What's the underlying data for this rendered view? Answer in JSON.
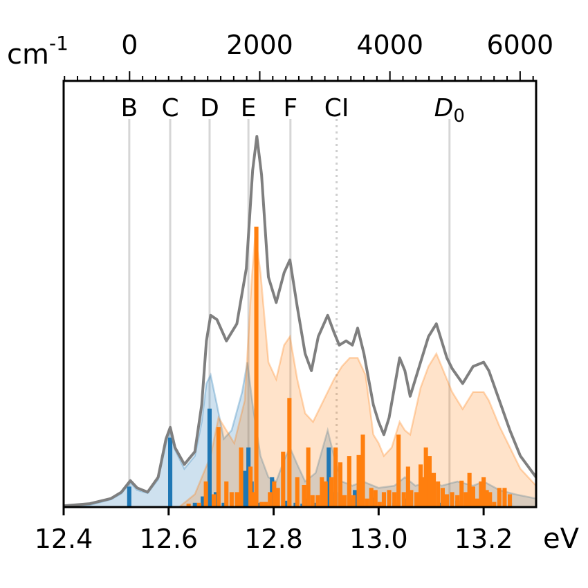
{
  "chart_data": {
    "type": "bar",
    "xlabel_bottom": "eV",
    "xlabel_top": "cm",
    "xlabel_top_exp": "-1",
    "xlim": [
      12.4,
      13.3
    ],
    "ylim": [
      0,
      1.0
    ],
    "x_ticks_bottom": [
      {
        "value": 12.4,
        "label": "12.4"
      },
      {
        "value": 12.6,
        "label": "12.6"
      },
      {
        "value": 12.8,
        "label": "12.8"
      },
      {
        "value": 13.0,
        "label": "13.0"
      },
      {
        "value": 13.2,
        "label": "13.2"
      }
    ],
    "top_axis_ref_ev": 12.5256,
    "top_axis_ev_per_cm": 0.000123984,
    "x_ticks_top": [
      {
        "value": 0,
        "label": "0"
      },
      {
        "value": 2000,
        "label": "2000"
      },
      {
        "value": 4000,
        "label": "4000"
      },
      {
        "value": 6000,
        "label": "6000"
      }
    ],
    "peak_markers": [
      {
        "label": "B",
        "x": 12.525,
        "style": "solid"
      },
      {
        "label": "C",
        "x": 12.603,
        "style": "solid"
      },
      {
        "label": "D",
        "x": 12.678,
        "style": "solid"
      },
      {
        "label": "E",
        "x": 12.752,
        "style": "solid"
      },
      {
        "label": "F",
        "x": 12.832,
        "style": "solid"
      },
      {
        "label": "CI",
        "x": 12.92,
        "style": "dotted"
      },
      {
        "label": "D",
        "sub": "0",
        "x": 13.135,
        "style": "solid",
        "italic": true
      }
    ],
    "series": [
      {
        "name": "",
        "kind": "envelope",
        "color": "#7f7f7f",
        "points": [
          [
            12.4,
            0.003
          ],
          [
            12.45,
            0.008
          ],
          [
            12.49,
            0.02
          ],
          [
            12.51,
            0.035
          ],
          [
            12.527,
            0.062
          ],
          [
            12.54,
            0.045
          ],
          [
            12.56,
            0.035
          ],
          [
            12.58,
            0.07
          ],
          [
            12.595,
            0.16
          ],
          [
            12.603,
            0.187
          ],
          [
            12.612,
            0.14
          ],
          [
            12.63,
            0.1
          ],
          [
            12.65,
            0.13
          ],
          [
            12.663,
            0.24
          ],
          [
            12.672,
            0.39
          ],
          [
            12.68,
            0.45
          ],
          [
            12.692,
            0.44
          ],
          [
            12.71,
            0.39
          ],
          [
            12.73,
            0.43
          ],
          [
            12.748,
            0.56
          ],
          [
            12.76,
            0.79
          ],
          [
            12.768,
            0.87
          ],
          [
            12.777,
            0.78
          ],
          [
            12.79,
            0.54
          ],
          [
            12.805,
            0.48
          ],
          [
            12.82,
            0.55
          ],
          [
            12.831,
            0.58
          ],
          [
            12.845,
            0.47
          ],
          [
            12.86,
            0.36
          ],
          [
            12.872,
            0.32
          ],
          [
            12.885,
            0.4
          ],
          [
            12.903,
            0.45
          ],
          [
            12.915,
            0.41
          ],
          [
            12.925,
            0.38
          ],
          [
            12.938,
            0.39
          ],
          [
            12.95,
            0.38
          ],
          [
            12.96,
            0.42
          ],
          [
            12.972,
            0.36
          ],
          [
            12.99,
            0.24
          ],
          [
            13.0,
            0.2
          ],
          [
            13.01,
            0.17
          ],
          [
            13.02,
            0.21
          ],
          [
            13.04,
            0.35
          ],
          [
            13.05,
            0.32
          ],
          [
            13.06,
            0.26
          ],
          [
            13.08,
            0.34
          ],
          [
            13.095,
            0.4
          ],
          [
            13.11,
            0.43
          ],
          [
            13.13,
            0.35
          ],
          [
            13.14,
            0.325
          ],
          [
            13.16,
            0.29
          ],
          [
            13.18,
            0.33
          ],
          [
            13.2,
            0.34
          ],
          [
            13.21,
            0.32
          ],
          [
            13.23,
            0.25
          ],
          [
            13.25,
            0.18
          ],
          [
            13.27,
            0.12
          ],
          [
            13.3,
            0.07
          ]
        ]
      },
      {
        "name": "",
        "kind": "filled-area",
        "color": "#1f77b4",
        "points": [
          [
            12.4,
            0.001
          ],
          [
            12.45,
            0.005
          ],
          [
            12.49,
            0.018
          ],
          [
            12.51,
            0.032
          ],
          [
            12.527,
            0.058
          ],
          [
            12.54,
            0.04
          ],
          [
            12.56,
            0.033
          ],
          [
            12.58,
            0.065
          ],
          [
            12.595,
            0.15
          ],
          [
            12.603,
            0.18
          ],
          [
            12.612,
            0.135
          ],
          [
            12.63,
            0.09
          ],
          [
            12.65,
            0.12
          ],
          [
            12.663,
            0.2
          ],
          [
            12.672,
            0.29
          ],
          [
            12.68,
            0.31
          ],
          [
            12.692,
            0.24
          ],
          [
            12.705,
            0.16
          ],
          [
            12.72,
            0.18
          ],
          [
            12.74,
            0.27
          ],
          [
            12.75,
            0.34
          ],
          [
            12.76,
            0.24
          ],
          [
            12.775,
            0.12
          ],
          [
            12.79,
            0.07
          ],
          [
            12.805,
            0.06
          ],
          [
            12.82,
            0.11
          ],
          [
            12.831,
            0.14
          ],
          [
            12.845,
            0.1
          ],
          [
            12.86,
            0.06
          ],
          [
            12.88,
            0.08
          ],
          [
            12.903,
            0.18
          ],
          [
            12.915,
            0.12
          ],
          [
            12.93,
            0.06
          ],
          [
            12.95,
            0.05
          ],
          [
            12.97,
            0.06
          ],
          [
            13.0,
            0.045
          ],
          [
            13.03,
            0.05
          ],
          [
            13.05,
            0.07
          ],
          [
            13.07,
            0.05
          ],
          [
            13.1,
            0.06
          ],
          [
            13.12,
            0.05
          ],
          [
            13.15,
            0.06
          ],
          [
            13.18,
            0.05
          ],
          [
            13.2,
            0.06
          ],
          [
            13.23,
            0.04
          ],
          [
            13.26,
            0.03
          ],
          [
            13.3,
            0.02
          ]
        ]
      },
      {
        "name": "",
        "kind": "filled-area",
        "color": "#ff7f0e",
        "points": [
          [
            12.4,
            0.0
          ],
          [
            12.62,
            0.0
          ],
          [
            12.65,
            0.03
          ],
          [
            12.68,
            0.12
          ],
          [
            12.695,
            0.21
          ],
          [
            12.71,
            0.18
          ],
          [
            12.725,
            0.15
          ],
          [
            12.745,
            0.25
          ],
          [
            12.758,
            0.53
          ],
          [
            12.765,
            0.64
          ],
          [
            12.775,
            0.55
          ],
          [
            12.79,
            0.34
          ],
          [
            12.805,
            0.3
          ],
          [
            12.82,
            0.38
          ],
          [
            12.831,
            0.4
          ],
          [
            12.845,
            0.3
          ],
          [
            12.86,
            0.22
          ],
          [
            12.875,
            0.2
          ],
          [
            12.895,
            0.25
          ],
          [
            12.915,
            0.3
          ],
          [
            12.93,
            0.33
          ],
          [
            12.945,
            0.35
          ],
          [
            12.96,
            0.35
          ],
          [
            12.975,
            0.31
          ],
          [
            12.99,
            0.17
          ],
          [
            13.0,
            0.15
          ],
          [
            13.01,
            0.12
          ],
          [
            13.025,
            0.14
          ],
          [
            13.04,
            0.2
          ],
          [
            13.05,
            0.18
          ],
          [
            13.06,
            0.17
          ],
          [
            13.08,
            0.28
          ],
          [
            13.095,
            0.33
          ],
          [
            13.11,
            0.36
          ],
          [
            13.13,
            0.3
          ],
          [
            13.14,
            0.27
          ],
          [
            13.16,
            0.23
          ],
          [
            13.18,
            0.27
          ],
          [
            13.2,
            0.27
          ],
          [
            13.21,
            0.25
          ],
          [
            13.23,
            0.19
          ],
          [
            13.25,
            0.14
          ],
          [
            13.27,
            0.09
          ],
          [
            13.3,
            0.05
          ]
        ]
      },
      {
        "name": "",
        "kind": "sticks",
        "color": "#1f77b4",
        "bar_width_ev": 0.008,
        "points": [
          [
            12.525,
            0.048
          ],
          [
            12.603,
            0.163
          ],
          [
            12.65,
            0.01
          ],
          [
            12.665,
            0.025
          ],
          [
            12.678,
            0.231
          ],
          [
            12.69,
            0.035
          ],
          [
            12.705,
            0.01
          ],
          [
            12.733,
            0.02
          ],
          [
            12.745,
            0.085
          ],
          [
            12.752,
            0.14
          ],
          [
            12.758,
            0.06
          ],
          [
            12.765,
            0.015
          ],
          [
            12.775,
            0.01
          ],
          [
            12.785,
            0.005
          ],
          [
            12.797,
            0.07
          ],
          [
            12.805,
            0.025
          ],
          [
            12.822,
            0.015
          ],
          [
            12.842,
            0.01
          ],
          [
            12.855,
            0.008
          ],
          [
            12.865,
            0.02
          ],
          [
            12.88,
            0.01
          ],
          [
            12.895,
            0.02
          ],
          [
            12.905,
            0.14
          ],
          [
            12.918,
            0.035
          ],
          [
            12.932,
            0.01
          ],
          [
            12.946,
            0.02
          ],
          [
            12.955,
            0.04
          ],
          [
            12.965,
            0.03
          ],
          [
            12.99,
            0.022
          ],
          [
            13.03,
            0.01
          ],
          [
            13.055,
            0.02
          ],
          [
            13.08,
            0.015
          ],
          [
            13.1,
            0.02
          ],
          [
            13.12,
            0.01
          ],
          [
            13.15,
            0.015
          ],
          [
            13.175,
            0.02
          ],
          [
            13.2,
            0.01
          ],
          [
            13.25,
            0.01
          ]
        ]
      },
      {
        "name": "",
        "kind": "sticks",
        "color": "#ff7f0e",
        "bar_width_ev": 0.008,
        "points": [
          [
            12.638,
            0.008
          ],
          [
            12.658,
            0.01
          ],
          [
            12.671,
            0.06
          ],
          [
            12.686,
            0.03
          ],
          [
            12.695,
            0.188
          ],
          [
            12.71,
            0.06
          ],
          [
            12.72,
            0.035
          ],
          [
            12.73,
            0.035
          ],
          [
            12.738,
            0.14
          ],
          [
            12.756,
            0.095
          ],
          [
            12.761,
            0.035
          ],
          [
            12.767,
            0.658
          ],
          [
            12.777,
            0.012
          ],
          [
            12.785,
            0.012
          ],
          [
            12.793,
            0.035
          ],
          [
            12.801,
            0.06
          ],
          [
            12.808,
            0.045
          ],
          [
            12.818,
            0.13
          ],
          [
            12.83,
            0.256
          ],
          [
            12.845,
            0.07
          ],
          [
            12.858,
            0.052
          ],
          [
            12.866,
            0.14
          ],
          [
            12.874,
            0.028
          ],
          [
            12.884,
            0.028
          ],
          [
            12.892,
            0.07
          ],
          [
            12.899,
            0.06
          ],
          [
            12.91,
            0.07
          ],
          [
            12.918,
            0.14
          ],
          [
            12.927,
            0.105
          ],
          [
            12.935,
            0.028
          ],
          [
            12.944,
            0.12
          ],
          [
            12.952,
            0.028
          ],
          [
            12.962,
            0.122
          ],
          [
            12.97,
            0.17
          ],
          [
            12.978,
            0.02
          ],
          [
            12.986,
            0.045
          ],
          [
            12.994,
            0.04
          ],
          [
            13.002,
            0.012
          ],
          [
            13.01,
            0.035
          ],
          [
            13.02,
            0.04
          ],
          [
            13.03,
            0.035
          ],
          [
            13.038,
            0.17
          ],
          [
            13.048,
            0.035
          ],
          [
            13.056,
            0.095
          ],
          [
            13.062,
            0.04
          ],
          [
            13.072,
            0.035
          ],
          [
            13.08,
            0.1
          ],
          [
            13.085,
            0.07
          ],
          [
            13.09,
            0.14
          ],
          [
            13.097,
            0.12
          ],
          [
            13.105,
            0.08
          ],
          [
            13.113,
            0.06
          ],
          [
            13.122,
            0.045
          ],
          [
            13.13,
            0.03
          ],
          [
            13.14,
            0.035
          ],
          [
            13.15,
            0.028
          ],
          [
            13.158,
            0.062
          ],
          [
            13.166,
            0.035
          ],
          [
            13.173,
            0.08
          ],
          [
            13.18,
            0.048
          ],
          [
            13.188,
            0.02
          ],
          [
            13.195,
            0.06
          ],
          [
            13.2,
            0.07
          ],
          [
            13.206,
            0.04
          ],
          [
            13.212,
            0.035
          ],
          [
            13.22,
            0.012
          ],
          [
            13.23,
            0.045
          ],
          [
            13.24,
            0.045
          ],
          [
            13.25,
            0.03
          ]
        ]
      }
    ]
  }
}
